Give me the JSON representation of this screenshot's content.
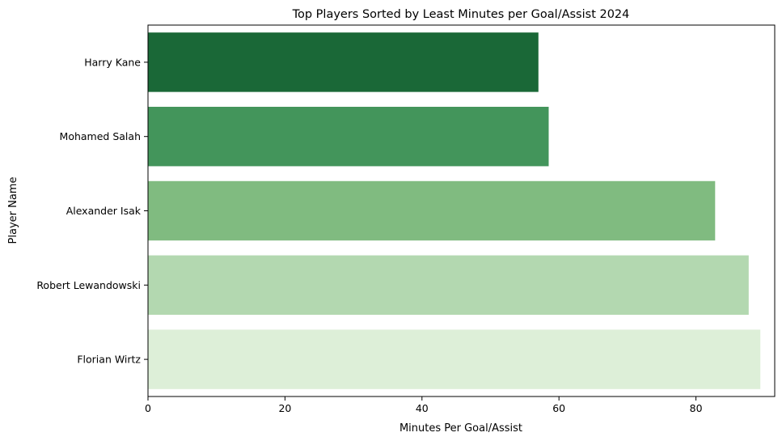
{
  "chart_data": {
    "type": "bar",
    "orientation": "horizontal",
    "title": "Top Players Sorted by Least Minutes per Goal/Assist 2024",
    "xlabel": "Minutes Per Goal/Assist",
    "ylabel": "Player Name",
    "categories": [
      "Harry Kane",
      "Mohamed Salah",
      "Alexander Isak",
      "Robert Lewandowski",
      "Florian Wirtz"
    ],
    "values": [
      57.0,
      58.5,
      82.8,
      87.7,
      89.4
    ],
    "colors": [
      "#1a6837",
      "#43955b",
      "#80bb80",
      "#b3d8b0",
      "#ddefd8"
    ],
    "xlim": [
      0,
      91.5
    ],
    "xticks": [
      0,
      20,
      40,
      60,
      80
    ],
    "grid": false,
    "legend": "none"
  }
}
